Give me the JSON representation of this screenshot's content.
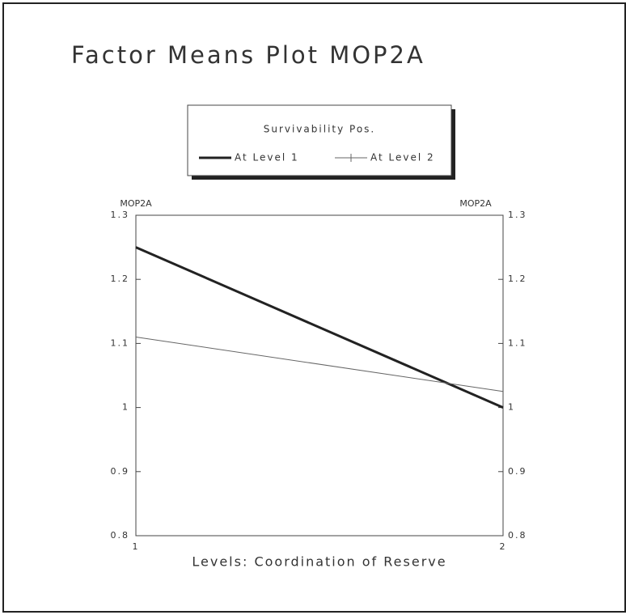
{
  "chart_data": {
    "type": "line",
    "title": "Factor Means Plot  MOP2A",
    "legend_title": "Survivability Pos.",
    "xlabel": "Levels: Coordination of Reserve",
    "ylabel": "MOP2A",
    "x": [
      1,
      2
    ],
    "xlim": [
      1,
      2
    ],
    "xticks": [
      1,
      2
    ],
    "ylim": [
      0.8,
      1.3
    ],
    "yticks": [
      0.8,
      0.9,
      1,
      1.1,
      1.2,
      1.3
    ],
    "series": [
      {
        "name": "At Level 1",
        "color": "#222222",
        "values": [
          1.25,
          1.0
        ]
      },
      {
        "name": "At Level 2",
        "color": "#666666",
        "values": [
          1.11,
          1.025
        ]
      }
    ]
  }
}
